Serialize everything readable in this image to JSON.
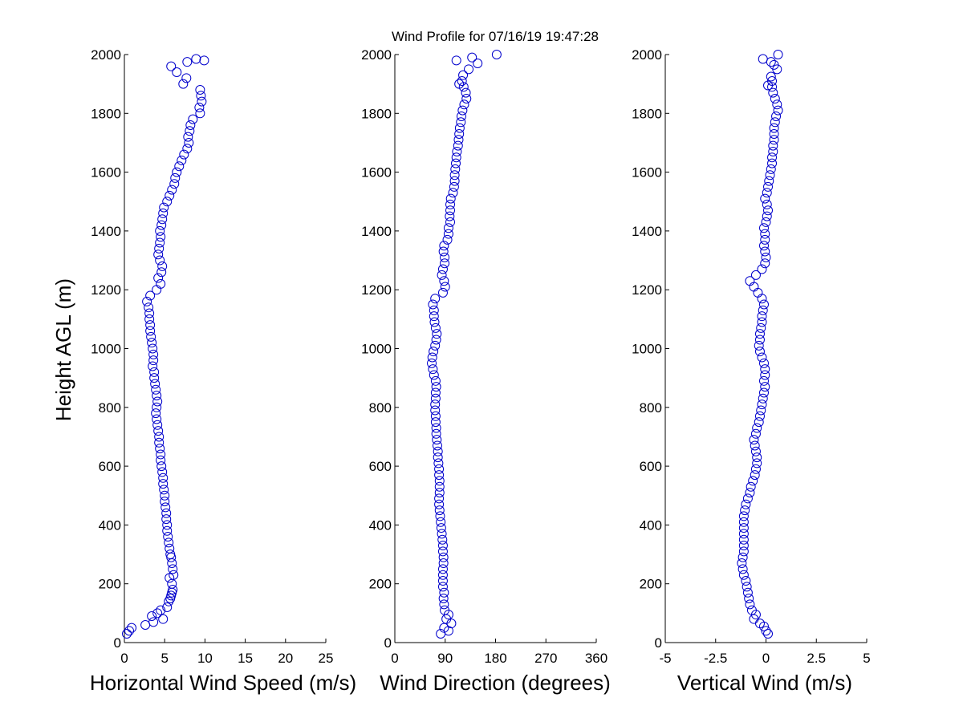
{
  "chart_data": {
    "title": "Wind Profile for  07/16/19 19:47:28",
    "ylabel": "Height AGL (m)",
    "ylim": [
      0,
      2000
    ],
    "yticks": [
      "0",
      "200",
      "400",
      "600",
      "800",
      "1000",
      "1200",
      "1400",
      "1600",
      "1800",
      "2000"
    ],
    "marker_color": "#0000cc",
    "panels": [
      {
        "type": "scatter",
        "xlabel": "Horizontal Wind Speed (m/s)",
        "xlim": [
          0,
          25
        ],
        "xticks": [
          "0",
          "5",
          "10",
          "15",
          "20",
          "25"
        ],
        "points": [
          [
            0.3,
            30
          ],
          [
            0.6,
            40
          ],
          [
            0.9,
            50
          ],
          [
            2.6,
            60
          ],
          [
            3.6,
            70
          ],
          [
            4.8,
            80
          ],
          [
            3.4,
            90
          ],
          [
            4.1,
            100
          ],
          [
            4.5,
            110
          ],
          [
            5.3,
            120
          ],
          [
            5.5,
            140
          ],
          [
            5.7,
            150
          ],
          [
            5.8,
            160
          ],
          [
            5.9,
            170
          ],
          [
            6.0,
            180
          ],
          [
            5.9,
            200
          ],
          [
            5.6,
            220
          ],
          [
            6.1,
            230
          ],
          [
            6.0,
            250
          ],
          [
            5.9,
            270
          ],
          [
            5.8,
            290
          ],
          [
            5.7,
            300
          ],
          [
            5.6,
            320
          ],
          [
            5.5,
            340
          ],
          [
            5.4,
            360
          ],
          [
            5.3,
            380
          ],
          [
            5.3,
            400
          ],
          [
            5.2,
            420
          ],
          [
            5.2,
            440
          ],
          [
            5.1,
            460
          ],
          [
            5.0,
            480
          ],
          [
            5.0,
            500
          ],
          [
            4.9,
            520
          ],
          [
            4.8,
            540
          ],
          [
            4.8,
            560
          ],
          [
            4.7,
            580
          ],
          [
            4.6,
            600
          ],
          [
            4.5,
            620
          ],
          [
            4.5,
            640
          ],
          [
            4.4,
            660
          ],
          [
            4.3,
            680
          ],
          [
            4.3,
            700
          ],
          [
            4.2,
            720
          ],
          [
            4.1,
            740
          ],
          [
            4.0,
            760
          ],
          [
            3.9,
            780
          ],
          [
            4.0,
            800
          ],
          [
            4.1,
            820
          ],
          [
            4.0,
            840
          ],
          [
            3.9,
            860
          ],
          [
            3.8,
            880
          ],
          [
            3.7,
            900
          ],
          [
            3.7,
            920
          ],
          [
            3.5,
            940
          ],
          [
            3.6,
            960
          ],
          [
            3.6,
            980
          ],
          [
            3.5,
            1000
          ],
          [
            3.4,
            1020
          ],
          [
            3.3,
            1040
          ],
          [
            3.2,
            1060
          ],
          [
            3.2,
            1080
          ],
          [
            3.1,
            1100
          ],
          [
            3.1,
            1120
          ],
          [
            3.0,
            1140
          ],
          [
            2.8,
            1160
          ],
          [
            3.2,
            1180
          ],
          [
            4.0,
            1200
          ],
          [
            4.5,
            1220
          ],
          [
            4.2,
            1240
          ],
          [
            4.6,
            1260
          ],
          [
            4.7,
            1280
          ],
          [
            4.4,
            1300
          ],
          [
            4.2,
            1320
          ],
          [
            4.3,
            1340
          ],
          [
            4.4,
            1360
          ],
          [
            4.5,
            1380
          ],
          [
            4.4,
            1400
          ],
          [
            4.6,
            1420
          ],
          [
            4.7,
            1440
          ],
          [
            4.8,
            1460
          ],
          [
            4.9,
            1480
          ],
          [
            5.3,
            1500
          ],
          [
            5.6,
            1520
          ],
          [
            5.9,
            1540
          ],
          [
            6.2,
            1560
          ],
          [
            6.3,
            1580
          ],
          [
            6.5,
            1600
          ],
          [
            6.8,
            1620
          ],
          [
            7.1,
            1640
          ],
          [
            7.4,
            1660
          ],
          [
            7.8,
            1680
          ],
          [
            8.0,
            1700
          ],
          [
            7.9,
            1720
          ],
          [
            8.1,
            1740
          ],
          [
            8.2,
            1760
          ],
          [
            8.5,
            1780
          ],
          [
            9.4,
            1800
          ],
          [
            9.3,
            1820
          ],
          [
            9.6,
            1840
          ],
          [
            9.5,
            1860
          ],
          [
            9.4,
            1880
          ],
          [
            7.3,
            1900
          ],
          [
            7.7,
            1920
          ],
          [
            6.5,
            1940
          ],
          [
            5.8,
            1960
          ],
          [
            7.8,
            1975
          ],
          [
            8.9,
            1985
          ],
          [
            9.9,
            1980
          ]
        ]
      },
      {
        "type": "scatter",
        "xlabel": "Wind Direction (degrees)",
        "xlim": [
          0,
          360
        ],
        "xticks": [
          "0",
          "90",
          "180",
          "270",
          "360"
        ],
        "points": [
          [
            82,
            30
          ],
          [
            96,
            40
          ],
          [
            88,
            50
          ],
          [
            101,
            65
          ],
          [
            92,
            80
          ],
          [
            96,
            95
          ],
          [
            89,
            110
          ],
          [
            88,
            130
          ],
          [
            87,
            150
          ],
          [
            88,
            170
          ],
          [
            86,
            190
          ],
          [
            86,
            210
          ],
          [
            86,
            230
          ],
          [
            86,
            250
          ],
          [
            87,
            270
          ],
          [
            87,
            290
          ],
          [
            86,
            310
          ],
          [
            86,
            330
          ],
          [
            85,
            350
          ],
          [
            84,
            370
          ],
          [
            83,
            390
          ],
          [
            82,
            410
          ],
          [
            81,
            430
          ],
          [
            80,
            450
          ],
          [
            79,
            470
          ],
          [
            79,
            490
          ],
          [
            80,
            510
          ],
          [
            80,
            530
          ],
          [
            80,
            550
          ],
          [
            79,
            570
          ],
          [
            79,
            590
          ],
          [
            78,
            610
          ],
          [
            77,
            630
          ],
          [
            77,
            650
          ],
          [
            76,
            670
          ],
          [
            75,
            690
          ],
          [
            74,
            710
          ],
          [
            74,
            730
          ],
          [
            73,
            750
          ],
          [
            73,
            770
          ],
          [
            72,
            790
          ],
          [
            72,
            810
          ],
          [
            73,
            830
          ],
          [
            73,
            850
          ],
          [
            74,
            870
          ],
          [
            73,
            890
          ],
          [
            70,
            910
          ],
          [
            68,
            930
          ],
          [
            66,
            950
          ],
          [
            67,
            970
          ],
          [
            69,
            990
          ],
          [
            72,
            1010
          ],
          [
            74,
            1030
          ],
          [
            75,
            1050
          ],
          [
            73,
            1070
          ],
          [
            71,
            1090
          ],
          [
            70,
            1110
          ],
          [
            70,
            1130
          ],
          [
            68,
            1150
          ],
          [
            72,
            1170
          ],
          [
            86,
            1190
          ],
          [
            90,
            1210
          ],
          [
            88,
            1230
          ],
          [
            84,
            1250
          ],
          [
            86,
            1270
          ],
          [
            89,
            1290
          ],
          [
            89,
            1310
          ],
          [
            87,
            1330
          ],
          [
            88,
            1350
          ],
          [
            94,
            1370
          ],
          [
            96,
            1390
          ],
          [
            96,
            1410
          ],
          [
            99,
            1430
          ],
          [
            98,
            1450
          ],
          [
            99,
            1470
          ],
          [
            99,
            1490
          ],
          [
            100,
            1510
          ],
          [
            104,
            1530
          ],
          [
            106,
            1550
          ],
          [
            107,
            1570
          ],
          [
            107,
            1590
          ],
          [
            108,
            1610
          ],
          [
            109,
            1630
          ],
          [
            110,
            1650
          ],
          [
            111,
            1670
          ],
          [
            113,
            1690
          ],
          [
            114,
            1710
          ],
          [
            115,
            1730
          ],
          [
            116,
            1750
          ],
          [
            118,
            1770
          ],
          [
            119,
            1790
          ],
          [
            121,
            1810
          ],
          [
            124,
            1830
          ],
          [
            128,
            1850
          ],
          [
            127,
            1870
          ],
          [
            123,
            1890
          ],
          [
            115,
            1900
          ],
          [
            120,
            1910
          ],
          [
            122,
            1930
          ],
          [
            132,
            1950
          ],
          [
            148,
            1970
          ],
          [
            110,
            1980
          ],
          [
            138,
            1990
          ],
          [
            182,
            2000
          ]
        ]
      },
      {
        "type": "scatter",
        "xlabel": "Vertical Wind (m/s)",
        "xlim": [
          -5,
          5
        ],
        "xticks": [
          "-5",
          "-2.5",
          "0",
          "2.5",
          "5"
        ],
        "points": [
          [
            0.1,
            30
          ],
          [
            0.0,
            40
          ],
          [
            -0.1,
            55
          ],
          [
            -0.3,
            65
          ],
          [
            -0.6,
            80
          ],
          [
            -0.5,
            95
          ],
          [
            -0.7,
            110
          ],
          [
            -0.8,
            130
          ],
          [
            -0.85,
            150
          ],
          [
            -0.9,
            170
          ],
          [
            -0.95,
            190
          ],
          [
            -1.0,
            210
          ],
          [
            -1.1,
            230
          ],
          [
            -1.15,
            250
          ],
          [
            -1.2,
            270
          ],
          [
            -1.15,
            290
          ],
          [
            -1.1,
            310
          ],
          [
            -1.1,
            330
          ],
          [
            -1.1,
            350
          ],
          [
            -1.1,
            370
          ],
          [
            -1.1,
            390
          ],
          [
            -1.1,
            410
          ],
          [
            -1.1,
            430
          ],
          [
            -1.05,
            450
          ],
          [
            -1.0,
            470
          ],
          [
            -0.9,
            490
          ],
          [
            -0.8,
            510
          ],
          [
            -0.75,
            530
          ],
          [
            -0.65,
            550
          ],
          [
            -0.55,
            570
          ],
          [
            -0.5,
            590
          ],
          [
            -0.45,
            610
          ],
          [
            -0.45,
            630
          ],
          [
            -0.5,
            650
          ],
          [
            -0.55,
            670
          ],
          [
            -0.6,
            690
          ],
          [
            -0.5,
            710
          ],
          [
            -0.45,
            730
          ],
          [
            -0.35,
            750
          ],
          [
            -0.3,
            770
          ],
          [
            -0.25,
            790
          ],
          [
            -0.2,
            810
          ],
          [
            -0.15,
            830
          ],
          [
            -0.1,
            850
          ],
          [
            -0.05,
            870
          ],
          [
            -0.1,
            890
          ],
          [
            -0.05,
            910
          ],
          [
            -0.05,
            930
          ],
          [
            -0.1,
            950
          ],
          [
            -0.2,
            970
          ],
          [
            -0.3,
            990
          ],
          [
            -0.35,
            1010
          ],
          [
            -0.3,
            1030
          ],
          [
            -0.3,
            1050
          ],
          [
            -0.25,
            1070
          ],
          [
            -0.2,
            1090
          ],
          [
            -0.2,
            1110
          ],
          [
            -0.15,
            1130
          ],
          [
            -0.1,
            1150
          ],
          [
            -0.2,
            1170
          ],
          [
            -0.4,
            1190
          ],
          [
            -0.6,
            1210
          ],
          [
            -0.8,
            1230
          ],
          [
            -0.5,
            1250
          ],
          [
            -0.2,
            1270
          ],
          [
            -0.05,
            1290
          ],
          [
            0.0,
            1310
          ],
          [
            -0.05,
            1330
          ],
          [
            -0.1,
            1350
          ],
          [
            -0.05,
            1370
          ],
          [
            -0.05,
            1390
          ],
          [
            -0.1,
            1410
          ],
          [
            0.0,
            1430
          ],
          [
            0.05,
            1450
          ],
          [
            0.1,
            1470
          ],
          [
            0.05,
            1490
          ],
          [
            -0.05,
            1510
          ],
          [
            0.05,
            1530
          ],
          [
            0.1,
            1550
          ],
          [
            0.15,
            1570
          ],
          [
            0.2,
            1590
          ],
          [
            0.25,
            1610
          ],
          [
            0.3,
            1630
          ],
          [
            0.3,
            1650
          ],
          [
            0.35,
            1670
          ],
          [
            0.35,
            1690
          ],
          [
            0.4,
            1710
          ],
          [
            0.4,
            1730
          ],
          [
            0.4,
            1750
          ],
          [
            0.45,
            1770
          ],
          [
            0.5,
            1790
          ],
          [
            0.6,
            1810
          ],
          [
            0.55,
            1830
          ],
          [
            0.45,
            1850
          ],
          [
            0.35,
            1870
          ],
          [
            0.3,
            1890
          ],
          [
            0.1,
            1895
          ],
          [
            0.3,
            1910
          ],
          [
            0.25,
            1925
          ],
          [
            0.55,
            1950
          ],
          [
            0.4,
            1965
          ],
          [
            0.25,
            1975
          ],
          [
            -0.15,
            1985
          ],
          [
            0.6,
            2000
          ]
        ]
      }
    ]
  }
}
